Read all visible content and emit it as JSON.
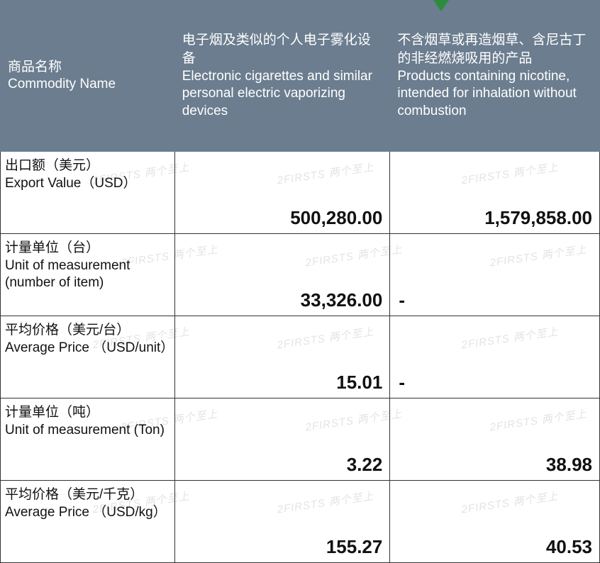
{
  "pointer_color": "#2e8b3e",
  "header_bg": "#6b7d8f",
  "header_fg": "#ffffff",
  "border_color": "#333333",
  "watermark_text": "2FIRSTS 两个至上",
  "watermark_color": "#d8d8d8",
  "columns": {
    "name": {
      "cn": "商品名称",
      "en": "Commodity Name"
    },
    "c1": {
      "cn": "电子烟及类似的个人电子雾化设备",
      "en": "Electronic cigarettes and similar personal electric vaporizing devices"
    },
    "c2": {
      "cn": "不含烟草或再造烟草、含尼古丁的非经燃烧吸用的产品",
      "en": "Products containing nicotine, intended for inhalation without combustion"
    }
  },
  "rows": [
    {
      "label_cn": "出口额（美元）",
      "label_en": " Export Value（USD）",
      "v1": "500,280.00",
      "v2": "1,579,858.00"
    },
    {
      "label_cn": "计量单位（台）",
      "label_en": "Unit of measurement (number of item)",
      "v1": "33,326.00",
      "v2": "-"
    },
    {
      "label_cn": "平均价格（美元/台）",
      "label_en": "Average Price （USD/unit）",
      "v1": "15.01",
      "v2": "-"
    },
    {
      "label_cn": "计量单位（吨）",
      "label_en": "Unit of measurement (Ton)",
      "v1": "3.22",
      "v2": "38.98"
    },
    {
      "label_cn": "平均价格（美元/千克）",
      "label_en": "Average Price （USD/kg）",
      "v1": "155.27",
      "v2": "40.53"
    }
  ]
}
